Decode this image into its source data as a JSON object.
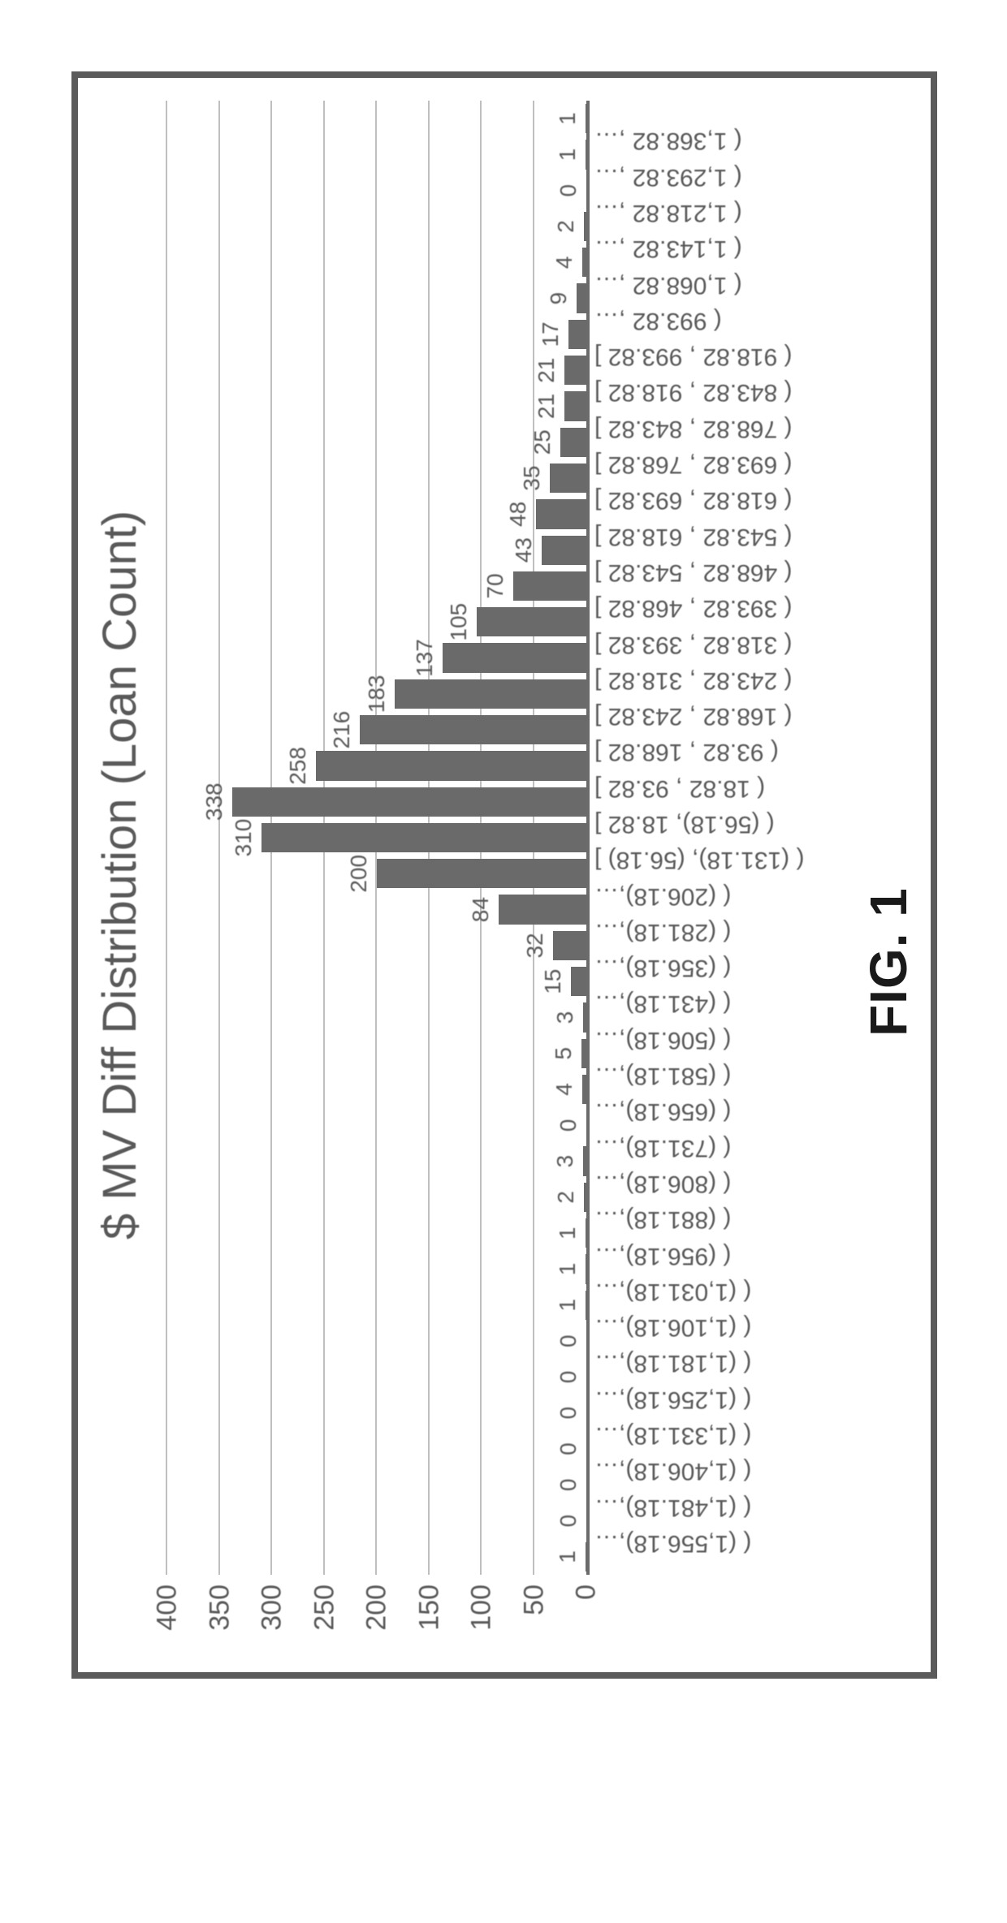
{
  "figure_caption": "FIG. 1",
  "chart": {
    "type": "bar",
    "title": "$ MV Diff Distribution (Loan Count)",
    "title_color": "#595959",
    "title_fontsize": 58,
    "background_color": "#ffffff",
    "grid_color": "#bfbfbf",
    "axis_color": "#6b6b6b",
    "bar_color": "#6a6a6a",
    "label_color": "#595959",
    "label_fontsize": 30,
    "datalabel_fontsize": 28,
    "ylim": [
      0,
      400
    ],
    "ytick_step": 50,
    "yticks": [
      0,
      50,
      100,
      150,
      200,
      250,
      300,
      350,
      400
    ],
    "bar_width_ratio": 0.82,
    "categories": [
      "( (1,556.18),…",
      "( (1,481.18),…",
      "( (1,406.18),…",
      "( (1,331.18),…",
      "( (1,256.18),…",
      "( (1,181.18),…",
      "( (1,106.18),…",
      "( (1,031.18),…",
      "( (956.18),…",
      "( (881.18),…",
      "( (806.18),…",
      "( (731.18),…",
      "( (656.18),…",
      "( (581.18),…",
      "( (506.18),…",
      "( (431.18),…",
      "( (356.18),…",
      "( (281.18),…",
      "( (206.18),…",
      "( (131.18), (56.18) ]",
      "( (56.18), 18.82 ]",
      "( 18.82 , 93.82 ]",
      "( 93.82 , 168.82 ]",
      "( 168.82 , 243.82 ]",
      "( 243.82 , 318.82 ]",
      "( 318.82 , 393.82 ]",
      "( 393.82 , 468.82 ]",
      "( 468.82 , 543.82 ]",
      "( 543.82 , 618.82 ]",
      "( 618.82 , 693.82 ]",
      "( 693.82 , 768.82 ]",
      "( 768.82 , 843.82 ]",
      "( 843.82 , 918.82 ]",
      "( 918.82 , 993.82 ]",
      "( 993.82 ,…",
      "( 1,068.82 ,…",
      "( 1,143.82 ,…",
      "( 1,218.82 ,…",
      "( 1,293.82 ,…",
      "( 1,368.82 ,…"
    ],
    "values": [
      1,
      0,
      0,
      0,
      0,
      0,
      0,
      1,
      1,
      1,
      2,
      3,
      0,
      4,
      5,
      3,
      15,
      32,
      84,
      200,
      310,
      338,
      258,
      216,
      183,
      137,
      105,
      70,
      43,
      48,
      35,
      25,
      21,
      21,
      17,
      9,
      4,
      2,
      0,
      1,
      1
    ]
  }
}
